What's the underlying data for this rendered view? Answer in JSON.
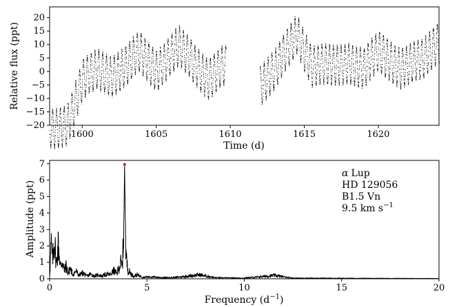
{
  "chart_data": [
    {
      "type": "scatter",
      "xlabel": "Time (d)",
      "ylabel": "Relative flux (ppt)",
      "xlim": [
        1597.8,
        1624.1
      ],
      "ylim": [
        -20,
        24
      ],
      "xticks": [
        1600,
        1605,
        1610,
        1615,
        1620
      ],
      "yticks": [
        -20,
        -15,
        -10,
        -5,
        0,
        5,
        10,
        15,
        20
      ],
      "series": [
        {
          "segments": [
            {
              "x_start": 1597.8,
              "x_end": 1609.7
            },
            {
              "x_start": 1612.0,
              "x_end": 1624.1
            }
          ],
          "dominant_frequency_per_day": 3.85,
          "semi_amplitude_ppt": 7,
          "envelope_points": [
            [
              1598.0,
              -14
            ],
            [
              1599.0,
              -12
            ],
            [
              1600.0,
              3
            ],
            [
              1601.0,
              8
            ],
            [
              1602.0,
              6
            ],
            [
              1603.0,
              9
            ],
            [
              1603.8,
              14
            ],
            [
              1605.0,
              8
            ],
            [
              1606.5,
              16
            ],
            [
              1607.5,
              10
            ],
            [
              1608.5,
              5
            ],
            [
              1609.5,
              9
            ],
            [
              1612.0,
              2
            ],
            [
              1613.0,
              7
            ],
            [
              1614.5,
              22
            ],
            [
              1615.5,
              9
            ],
            [
              1617.0,
              9
            ],
            [
              1618.0,
              11
            ],
            [
              1619.0,
              8
            ],
            [
              1620.0,
              14
            ],
            [
              1621.5,
              9
            ],
            [
              1623.0,
              11
            ],
            [
              1624.0,
              18
            ]
          ]
        }
      ]
    },
    {
      "type": "line",
      "xlabel": "Frequency (d",
      "xlabel_sup": "−1",
      "xlabel_tail": ")",
      "ylabel": "Amplitude (ppt)",
      "xlim": [
        0,
        20
      ],
      "ylim": [
        0,
        7.2
      ],
      "xticks": [
        0,
        5,
        10,
        15,
        20
      ],
      "yticks": [
        0,
        1,
        2,
        3,
        4,
        5,
        6,
        7
      ],
      "peak": {
        "x": 3.85,
        "y": 6.95,
        "marker_color": "#c0392b"
      },
      "spectrum_points": [
        [
          0.0,
          0.3
        ],
        [
          0.08,
          2.6
        ],
        [
          0.15,
          1.5
        ],
        [
          0.25,
          2.9
        ],
        [
          0.35,
          1.1
        ],
        [
          0.45,
          2.7
        ],
        [
          0.55,
          0.9
        ],
        [
          0.65,
          1.4
        ],
        [
          0.75,
          0.6
        ],
        [
          0.85,
          1.0
        ],
        [
          0.95,
          0.4
        ],
        [
          1.05,
          0.8
        ],
        [
          1.2,
          0.3
        ],
        [
          1.35,
          0.6
        ],
        [
          1.5,
          0.25
        ],
        [
          1.7,
          0.45
        ],
        [
          1.9,
          0.2
        ],
        [
          2.1,
          0.35
        ],
        [
          2.3,
          0.2
        ],
        [
          2.5,
          0.3
        ],
        [
          2.7,
          0.2
        ],
        [
          2.9,
          0.35
        ],
        [
          3.1,
          0.3
        ],
        [
          3.3,
          0.6
        ],
        [
          3.45,
          0.4
        ],
        [
          3.55,
          0.8
        ],
        [
          3.65,
          1.2
        ],
        [
          3.72,
          0.9
        ],
        [
          3.78,
          2.4
        ],
        [
          3.82,
          3.9
        ],
        [
          3.85,
          6.95
        ],
        [
          3.88,
          4.2
        ],
        [
          3.92,
          2.0
        ],
        [
          3.98,
          1.0
        ],
        [
          4.05,
          0.6
        ],
        [
          4.15,
          0.45
        ],
        [
          4.3,
          0.2
        ],
        [
          4.5,
          0.3
        ],
        [
          4.8,
          0.12
        ],
        [
          5.2,
          0.15
        ],
        [
          5.8,
          0.08
        ],
        [
          6.5,
          0.1
        ],
        [
          7.7,
          0.3
        ],
        [
          8.5,
          0.08
        ],
        [
          10.0,
          0.05
        ],
        [
          11.55,
          0.25
        ],
        [
          12.5,
          0.05
        ],
        [
          15.0,
          0.04
        ],
        [
          17.5,
          0.03
        ],
        [
          20.0,
          0.02
        ]
      ]
    }
  ],
  "annotation": {
    "star_symbol": "α",
    "star_name": "Lup",
    "hd_id": "HD 129056",
    "spectral_type": "B1.5 Vn",
    "vsini": "9.5 km s",
    "vsini_sup": "−1"
  },
  "colors": {
    "points": "#000000",
    "line": "#000000",
    "peak_marker": "#c0392b"
  }
}
